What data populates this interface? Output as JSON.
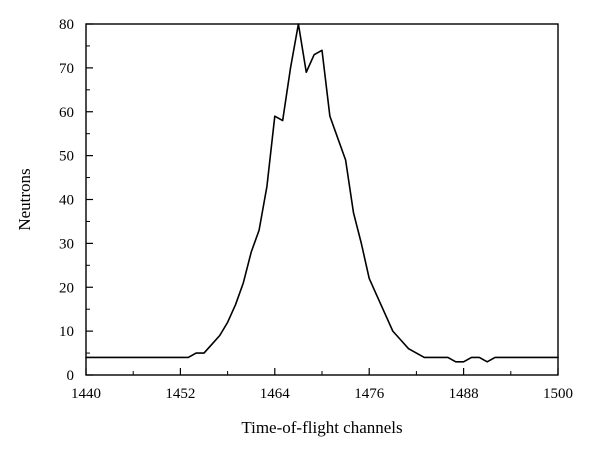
{
  "chart_data": {
    "type": "line",
    "title": "",
    "xlabel": "Time-of-flight channels",
    "ylabel": "Neutrons",
    "xlim": [
      1440,
      1500
    ],
    "ylim": [
      0,
      80
    ],
    "x_ticks": [
      1440,
      1452,
      1464,
      1476,
      1488,
      1500
    ],
    "x_tick_labels": [
      "1440",
      "1452",
      "1464",
      "1476",
      "1488",
      "1500"
    ],
    "y_ticks": [
      0,
      10,
      20,
      30,
      40,
      50,
      60,
      70,
      80
    ],
    "y_tick_labels": [
      "0",
      "10",
      "20",
      "30",
      "40",
      "50",
      "60",
      "70",
      "80"
    ],
    "grid": false,
    "legend": false,
    "line_color": "#000000",
    "series": [
      {
        "name": "",
        "x": [
          1440,
          1441,
          1442,
          1443,
          1444,
          1445,
          1446,
          1447,
          1448,
          1449,
          1450,
          1451,
          1452,
          1453,
          1454,
          1455,
          1456,
          1457,
          1458,
          1459,
          1460,
          1461,
          1462,
          1463,
          1464,
          1465,
          1466,
          1467,
          1468,
          1469,
          1470,
          1471,
          1472,
          1473,
          1474,
          1475,
          1476,
          1477,
          1478,
          1479,
          1480,
          1481,
          1482,
          1483,
          1484,
          1485,
          1486,
          1487,
          1488,
          1489,
          1490,
          1491,
          1492,
          1493,
          1494,
          1495,
          1496,
          1497,
          1498,
          1499,
          1500
        ],
        "y": [
          4,
          4,
          4,
          4,
          4,
          4,
          4,
          4,
          4,
          4,
          4,
          4,
          4,
          4,
          5,
          5,
          7,
          9,
          12,
          16,
          21,
          28,
          33,
          43,
          59,
          58,
          70,
          80,
          69,
          73,
          74,
          59,
          54,
          49,
          37,
          30,
          22,
          18,
          14,
          10,
          8,
          6,
          5,
          4,
          4,
          4,
          4,
          3,
          3,
          4,
          4,
          3,
          4,
          4,
          4,
          4,
          4,
          4,
          4,
          4,
          4
        ]
      }
    ]
  }
}
